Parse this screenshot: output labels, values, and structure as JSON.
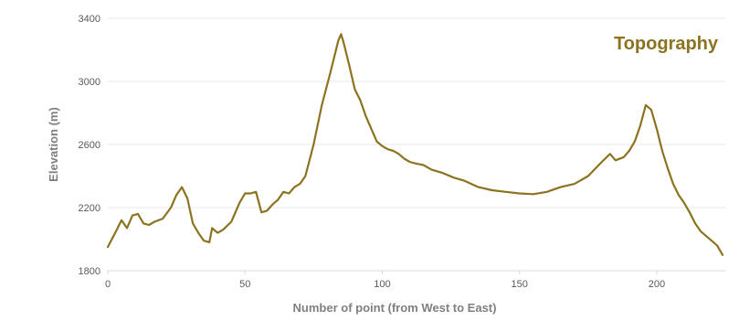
{
  "chart_data": {
    "type": "line",
    "title": "Topography",
    "xlabel": "Number of point (from West to East)",
    "ylabel": "Elevation (m)",
    "xlim": [
      0,
      225
    ],
    "ylim": [
      1800,
      3400
    ],
    "x_ticks": [
      0,
      50,
      100,
      150,
      200
    ],
    "y_ticks": [
      1800,
      2200,
      2600,
      3000,
      3400
    ],
    "grid": true,
    "legend": "none",
    "colors": {
      "line": "#8B7320",
      "title": "#8B7320",
      "grid": "#e8e8e8",
      "axis": "#d9d9d9"
    },
    "series": [
      {
        "x": [
          0,
          3,
          5,
          7,
          9,
          11,
          13,
          15,
          17,
          20,
          23,
          25,
          27,
          29,
          31,
          33,
          35,
          37,
          38,
          40,
          42,
          45,
          48,
          50,
          52,
          54,
          56,
          58,
          60,
          62,
          64,
          66,
          68,
          70,
          72,
          75,
          78,
          81,
          84,
          85,
          86,
          88,
          90,
          92,
          94,
          96,
          98,
          100,
          102,
          104,
          106,
          108,
          110,
          112,
          115,
          118,
          122,
          126,
          130,
          135,
          140,
          145,
          150,
          155,
          160,
          165,
          170,
          175,
          180,
          183,
          185,
          188,
          190,
          192,
          194,
          196,
          198,
          200,
          202,
          204,
          206,
          208,
          210,
          212,
          214,
          216,
          218,
          220,
          222,
          224
        ],
        "y": [
          1950,
          2050,
          2120,
          2070,
          2150,
          2160,
          2100,
          2090,
          2110,
          2130,
          2200,
          2280,
          2330,
          2260,
          2100,
          2040,
          1990,
          1980,
          2070,
          2040,
          2060,
          2110,
          2230,
          2290,
          2290,
          2300,
          2170,
          2180,
          2220,
          2250,
          2300,
          2290,
          2330,
          2350,
          2400,
          2600,
          2850,
          3050,
          3260,
          3300,
          3240,
          3100,
          2950,
          2880,
          2780,
          2700,
          2620,
          2590,
          2570,
          2560,
          2540,
          2510,
          2490,
          2480,
          2470,
          2440,
          2420,
          2390,
          2370,
          2330,
          2310,
          2300,
          2290,
          2285,
          2300,
          2330,
          2350,
          2400,
          2490,
          2540,
          2500,
          2520,
          2560,
          2620,
          2720,
          2850,
          2820,
          2700,
          2560,
          2450,
          2350,
          2280,
          2230,
          2170,
          2100,
          2050,
          2020,
          1990,
          1960,
          1900
        ]
      }
    ]
  }
}
